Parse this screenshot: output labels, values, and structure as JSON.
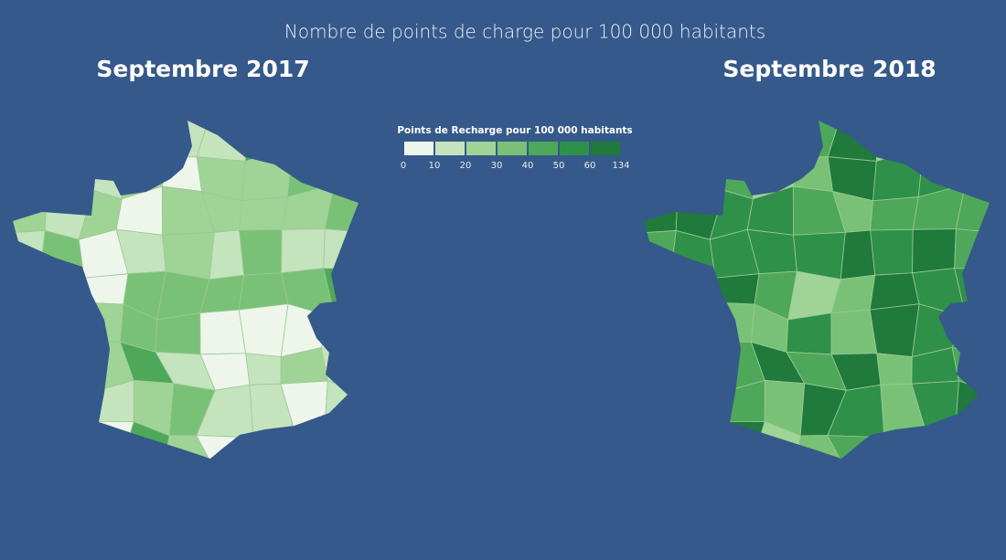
{
  "title": "Nombre de points de charge pour 100 000 habitants",
  "maps": [
    {
      "title": "Septembre 2017"
    },
    {
      "title": "Septembre 2018"
    }
  ],
  "legend": {
    "title": "Points de Recharge pour 100 000 habitants",
    "ticks": [
      0,
      10,
      20,
      30,
      40,
      50,
      60,
      134
    ],
    "colors": [
      "#eef6ec",
      "#c4e4bd",
      "#a0d497",
      "#79c177",
      "#4ea85a",
      "#2f9049",
      "#1f7a3c"
    ]
  }
}
